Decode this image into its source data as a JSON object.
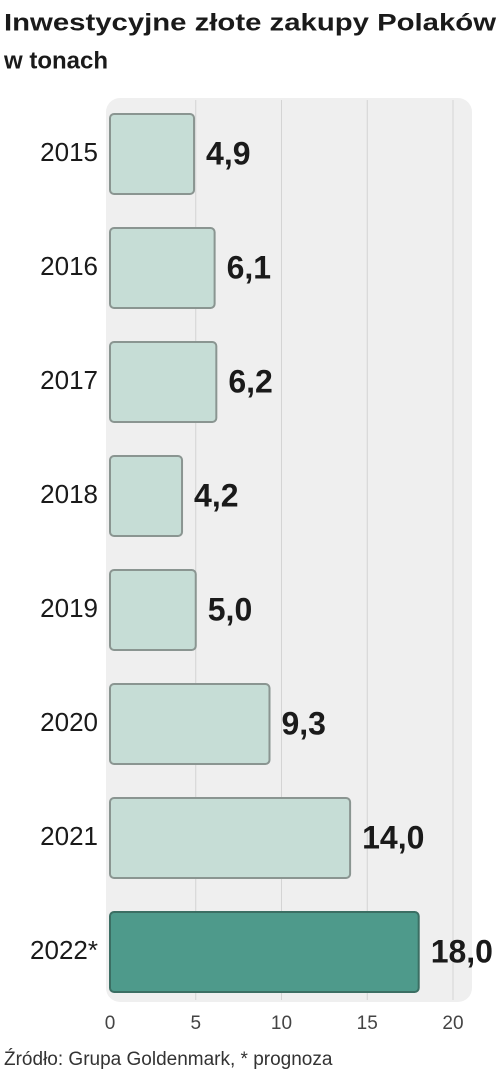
{
  "chart_data": {
    "type": "bar",
    "orientation": "horizontal",
    "title": "Inwestycyjne złote zakupy Polaków",
    "subtitle": "w tonach",
    "categories": [
      "2015",
      "2016",
      "2017",
      "2018",
      "2019",
      "2020",
      "2021",
      "2022*"
    ],
    "values": [
      4.9,
      6.1,
      6.2,
      4.2,
      5.0,
      9.3,
      14.0,
      18.0
    ],
    "value_labels": [
      "4,9",
      "6,1",
      "6,2",
      "4,2",
      "5,0",
      "9,3",
      "14,0",
      "18,0"
    ],
    "colors": [
      "#c6ddd6",
      "#c6ddd6",
      "#c6ddd6",
      "#c6ddd6",
      "#c6ddd6",
      "#c6ddd6",
      "#c6ddd6",
      "#4e9a8b"
    ],
    "xlim": [
      0,
      20
    ],
    "xticks": [
      0,
      5,
      10,
      15,
      20
    ],
    "grid": true,
    "source": "Źródło: Grupa Goldenmark, * prognoza"
  }
}
